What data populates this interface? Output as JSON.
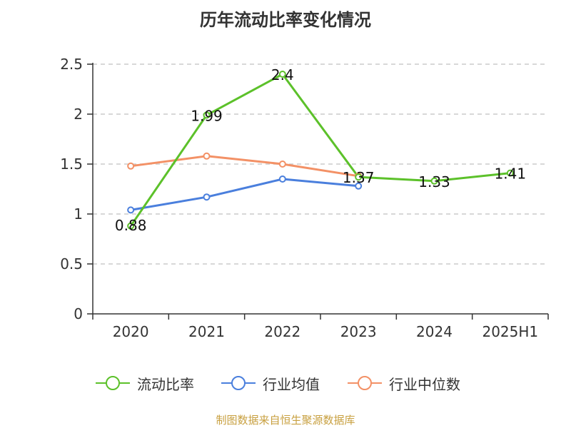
{
  "chart_data": {
    "type": "line",
    "title": "历年流动比率变化情况",
    "categories": [
      "2020",
      "2021",
      "2022",
      "2023",
      "2024",
      "2025H1"
    ],
    "ylim": [
      0,
      2.5
    ],
    "yticks": [
      "0",
      "0.5",
      "1",
      "1.5",
      "2",
      "2.5"
    ],
    "grid": true,
    "legend_position": "bottom",
    "series": [
      {
        "name": "流动比率",
        "color": "#5cc12a",
        "values": [
          0.88,
          1.99,
          2.4,
          1.37,
          1.33,
          1.41
        ],
        "labels": [
          "0.88",
          "1.99",
          "2.4",
          "1.37",
          "1.33",
          "1.41"
        ]
      },
      {
        "name": "行业均值",
        "color": "#4a7fdd",
        "values": [
          1.04,
          1.17,
          1.35,
          1.28,
          null,
          null
        ]
      },
      {
        "name": "行业中位数",
        "color": "#f39166",
        "values": [
          1.48,
          1.58,
          1.5,
          1.38,
          null,
          null
        ]
      }
    ]
  },
  "source": "制图数据来自恒生聚源数据库"
}
